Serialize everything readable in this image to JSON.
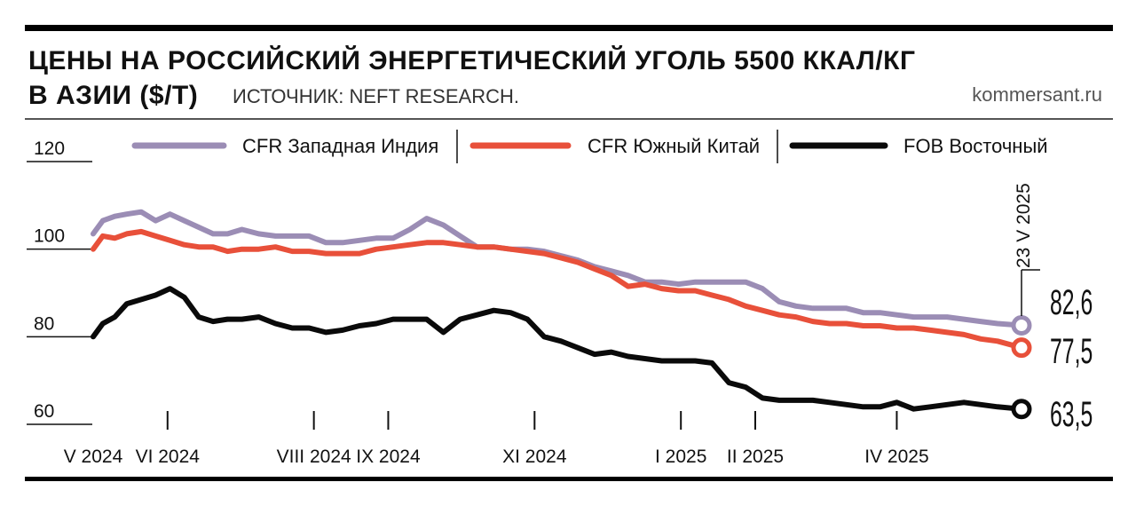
{
  "header": {
    "title_line1": "ЦЕНЫ НА РОССИЙСКИЙ ЭНЕРГЕТИЧЕСКИЙ УГОЛЬ 5500 ККАЛ/КГ",
    "title_line2": "В АЗИИ ($/Т)",
    "source": "ИСТОЧНИК: NEFT RESEARCH.",
    "site": "kommersant.ru"
  },
  "chart_data": {
    "type": "line",
    "title": "ЦЕНЫ НА РОССИЙСКИЙ ЭНЕРГЕТИЧЕСКИЙ УГОЛЬ 5500 ККАЛ/КГ В АЗИИ ($/Т)",
    "xlabel": "",
    "ylabel": "",
    "ylim": [
      60,
      120
    ],
    "y_ticks": [
      120,
      100,
      80,
      60
    ],
    "x_ticks": [
      "V 2024",
      "VI 2024",
      "VIII 2024",
      "IX 2024",
      "XI 2024",
      "I 2025",
      "II 2025",
      "IV 2025"
    ],
    "x_tick_dates": [
      "2024-05-01",
      "2024-06-01",
      "2024-08-01",
      "2024-09-01",
      "2024-11-01",
      "2025-01-01",
      "2025-02-01",
      "2025-04-01"
    ],
    "grid": false,
    "legend_position": "top",
    "end_date_label": "23 V 2025",
    "series": [
      {
        "name": "CFR Западная Индия",
        "color": "#9b8db5",
        "end_label": "82,6",
        "x": [
          "2024-05-01",
          "2024-05-05",
          "2024-05-10",
          "2024-05-15",
          "2024-05-21",
          "2024-05-27",
          "2024-06-02",
          "2024-06-08",
          "2024-06-14",
          "2024-06-20",
          "2024-06-26",
          "2024-07-02",
          "2024-07-09",
          "2024-07-16",
          "2024-07-23",
          "2024-07-30",
          "2024-08-06",
          "2024-08-13",
          "2024-08-20",
          "2024-08-27",
          "2024-09-03",
          "2024-09-10",
          "2024-09-17",
          "2024-09-24",
          "2024-10-01",
          "2024-10-08",
          "2024-10-15",
          "2024-10-22",
          "2024-10-29",
          "2024-11-05",
          "2024-11-12",
          "2024-11-19",
          "2024-11-26",
          "2024-12-03",
          "2024-12-10",
          "2024-12-17",
          "2024-12-24",
          "2024-12-31",
          "2025-01-07",
          "2025-01-14",
          "2025-01-21",
          "2025-01-28",
          "2025-02-04",
          "2025-02-11",
          "2025-02-18",
          "2025-02-25",
          "2025-03-04",
          "2025-03-11",
          "2025-03-18",
          "2025-03-25",
          "2025-04-01",
          "2025-04-08",
          "2025-04-15",
          "2025-04-22",
          "2025-04-29",
          "2025-05-06",
          "2025-05-13",
          "2025-05-23"
        ],
        "values": [
          103.5,
          106.5,
          107.5,
          108,
          108.5,
          106.5,
          108,
          106.5,
          105,
          103.5,
          103.5,
          104.5,
          103.5,
          103,
          103,
          103,
          101.5,
          101.5,
          102,
          102.5,
          102.5,
          104.5,
          107,
          105.5,
          103,
          100.5,
          100.5,
          100,
          100,
          99.5,
          98.5,
          97.5,
          96,
          95,
          94,
          92.5,
          92.5,
          92,
          92.5,
          92.5,
          92.5,
          92.5,
          91,
          88,
          87,
          86.5,
          86.5,
          86.5,
          85.5,
          85.5,
          85,
          84.5,
          84.5,
          84.5,
          84,
          83.5,
          83,
          82.6
        ]
      },
      {
        "name": "CFR Южный Китай",
        "color": "#e8503a",
        "end_label": "77,5",
        "x": [
          "2024-05-01",
          "2024-05-05",
          "2024-05-10",
          "2024-05-15",
          "2024-05-21",
          "2024-05-27",
          "2024-06-02",
          "2024-06-08",
          "2024-06-14",
          "2024-06-20",
          "2024-06-26",
          "2024-07-02",
          "2024-07-09",
          "2024-07-16",
          "2024-07-23",
          "2024-07-30",
          "2024-08-06",
          "2024-08-13",
          "2024-08-20",
          "2024-08-27",
          "2024-09-03",
          "2024-09-10",
          "2024-09-17",
          "2024-09-24",
          "2024-10-01",
          "2024-10-08",
          "2024-10-15",
          "2024-10-22",
          "2024-10-29",
          "2024-11-05",
          "2024-11-12",
          "2024-11-19",
          "2024-11-26",
          "2024-12-03",
          "2024-12-10",
          "2024-12-17",
          "2024-12-24",
          "2024-12-31",
          "2025-01-07",
          "2025-01-14",
          "2025-01-21",
          "2025-01-28",
          "2025-02-04",
          "2025-02-11",
          "2025-02-18",
          "2025-02-25",
          "2025-03-04",
          "2025-03-11",
          "2025-03-18",
          "2025-03-25",
          "2025-04-01",
          "2025-04-08",
          "2025-04-15",
          "2025-04-22",
          "2025-04-29",
          "2025-05-06",
          "2025-05-13",
          "2025-05-23"
        ],
        "values": [
          100,
          103,
          102.5,
          103.5,
          104,
          103,
          102,
          101,
          100.5,
          100.5,
          99.5,
          100,
          100,
          100.5,
          99.5,
          99.5,
          99,
          99,
          99,
          100,
          100.5,
          101,
          101.5,
          101.5,
          101,
          100.5,
          100.5,
          100,
          99.5,
          99,
          98,
          97,
          95.5,
          94,
          91.5,
          92,
          91,
          90.5,
          90.5,
          89.5,
          88.5,
          87,
          86,
          85,
          84.5,
          83.5,
          83,
          83,
          82.5,
          82.5,
          82,
          82,
          81.5,
          81,
          80.5,
          79.5,
          79,
          77.5
        ]
      },
      {
        "name": "FOB Восточный",
        "color": "#0a0a0a",
        "end_label": "63,5",
        "x": [
          "2024-05-01",
          "2024-05-05",
          "2024-05-10",
          "2024-05-15",
          "2024-05-21",
          "2024-05-27",
          "2024-06-02",
          "2024-06-08",
          "2024-06-14",
          "2024-06-20",
          "2024-06-26",
          "2024-07-02",
          "2024-07-09",
          "2024-07-16",
          "2024-07-23",
          "2024-07-30",
          "2024-08-06",
          "2024-08-13",
          "2024-08-20",
          "2024-08-27",
          "2024-09-03",
          "2024-09-10",
          "2024-09-17",
          "2024-09-24",
          "2024-10-01",
          "2024-10-08",
          "2024-10-15",
          "2024-10-22",
          "2024-10-29",
          "2024-11-05",
          "2024-11-12",
          "2024-11-19",
          "2024-11-26",
          "2024-12-03",
          "2024-12-10",
          "2024-12-17",
          "2024-12-24",
          "2024-12-31",
          "2025-01-07",
          "2025-01-14",
          "2025-01-21",
          "2025-01-28",
          "2025-02-04",
          "2025-02-11",
          "2025-02-18",
          "2025-02-25",
          "2025-03-04",
          "2025-03-11",
          "2025-03-18",
          "2025-03-25",
          "2025-04-01",
          "2025-04-08",
          "2025-04-15",
          "2025-04-22",
          "2025-04-29",
          "2025-05-06",
          "2025-05-13",
          "2025-05-23"
        ],
        "values": [
          80,
          83,
          84.5,
          87.5,
          88.5,
          89.5,
          91,
          89,
          84.5,
          83.5,
          84,
          84,
          84.5,
          83,
          82,
          82,
          81,
          81.5,
          82.5,
          83,
          84,
          84,
          84,
          81,
          84,
          85,
          86,
          85.5,
          84,
          80,
          79,
          77.5,
          76,
          76.5,
          75.5,
          75,
          74.5,
          74.5,
          74.5,
          74,
          69.5,
          68.5,
          66,
          65.5,
          65.5,
          65.5,
          65,
          64.5,
          64,
          64,
          65,
          63.5,
          64,
          64.5,
          65,
          64.5,
          64,
          63.5
        ]
      }
    ]
  }
}
